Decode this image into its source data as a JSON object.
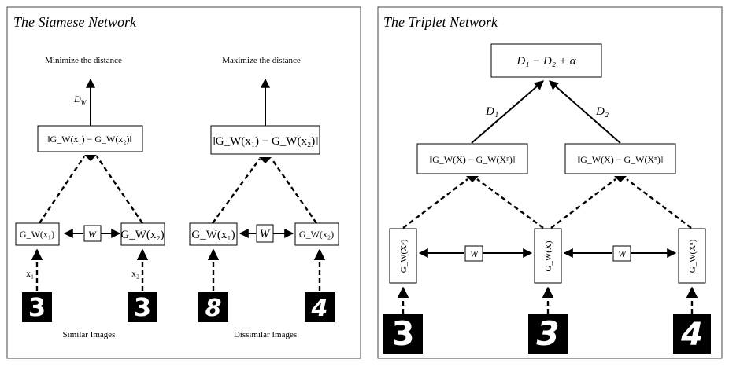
{
  "siamese": {
    "title": "The Siamese Network",
    "left": {
      "caption_top": "Minimize the distance",
      "distance_label": "D",
      "distance_sub": "W",
      "distance_box": "‖G_W(x₁) − G_W(x₂)‖",
      "enc1": "G_W(x₁)",
      "enc2": "G_W(x₂)",
      "weight": "W",
      "input1_label": "x₁",
      "input2_label": "x₂",
      "digit1": "3",
      "digit2": "3",
      "caption_bottom": "Similar Images"
    },
    "right": {
      "caption_top": "Maximize the distance",
      "distance_box": "‖G_W(x₁) − G_W(x₂)‖",
      "enc1": "G_W(x₁)",
      "enc2": "G_W(x₂)",
      "weight": "W",
      "digit1": "8",
      "digit2": "4",
      "caption_bottom": "Dissimilar Images"
    }
  },
  "triplet": {
    "title": "The Triplet Network",
    "loss_box": "D₁ − D₂ + α",
    "d1_label": "D₁",
    "d2_label": "D₂",
    "dist_pos": "‖G_W(X) − G_W(Xᵖ)‖",
    "dist_neg": "‖G_W(X) − G_W(Xⁿ)‖",
    "enc_pos": "G_W(Xᵖ)",
    "enc_anchor": "G_W(X)",
    "enc_neg": "G_W(Xⁿ)",
    "weight1": "W",
    "weight2": "W",
    "digit1": "3",
    "digit2": "3",
    "digit3": "4"
  }
}
